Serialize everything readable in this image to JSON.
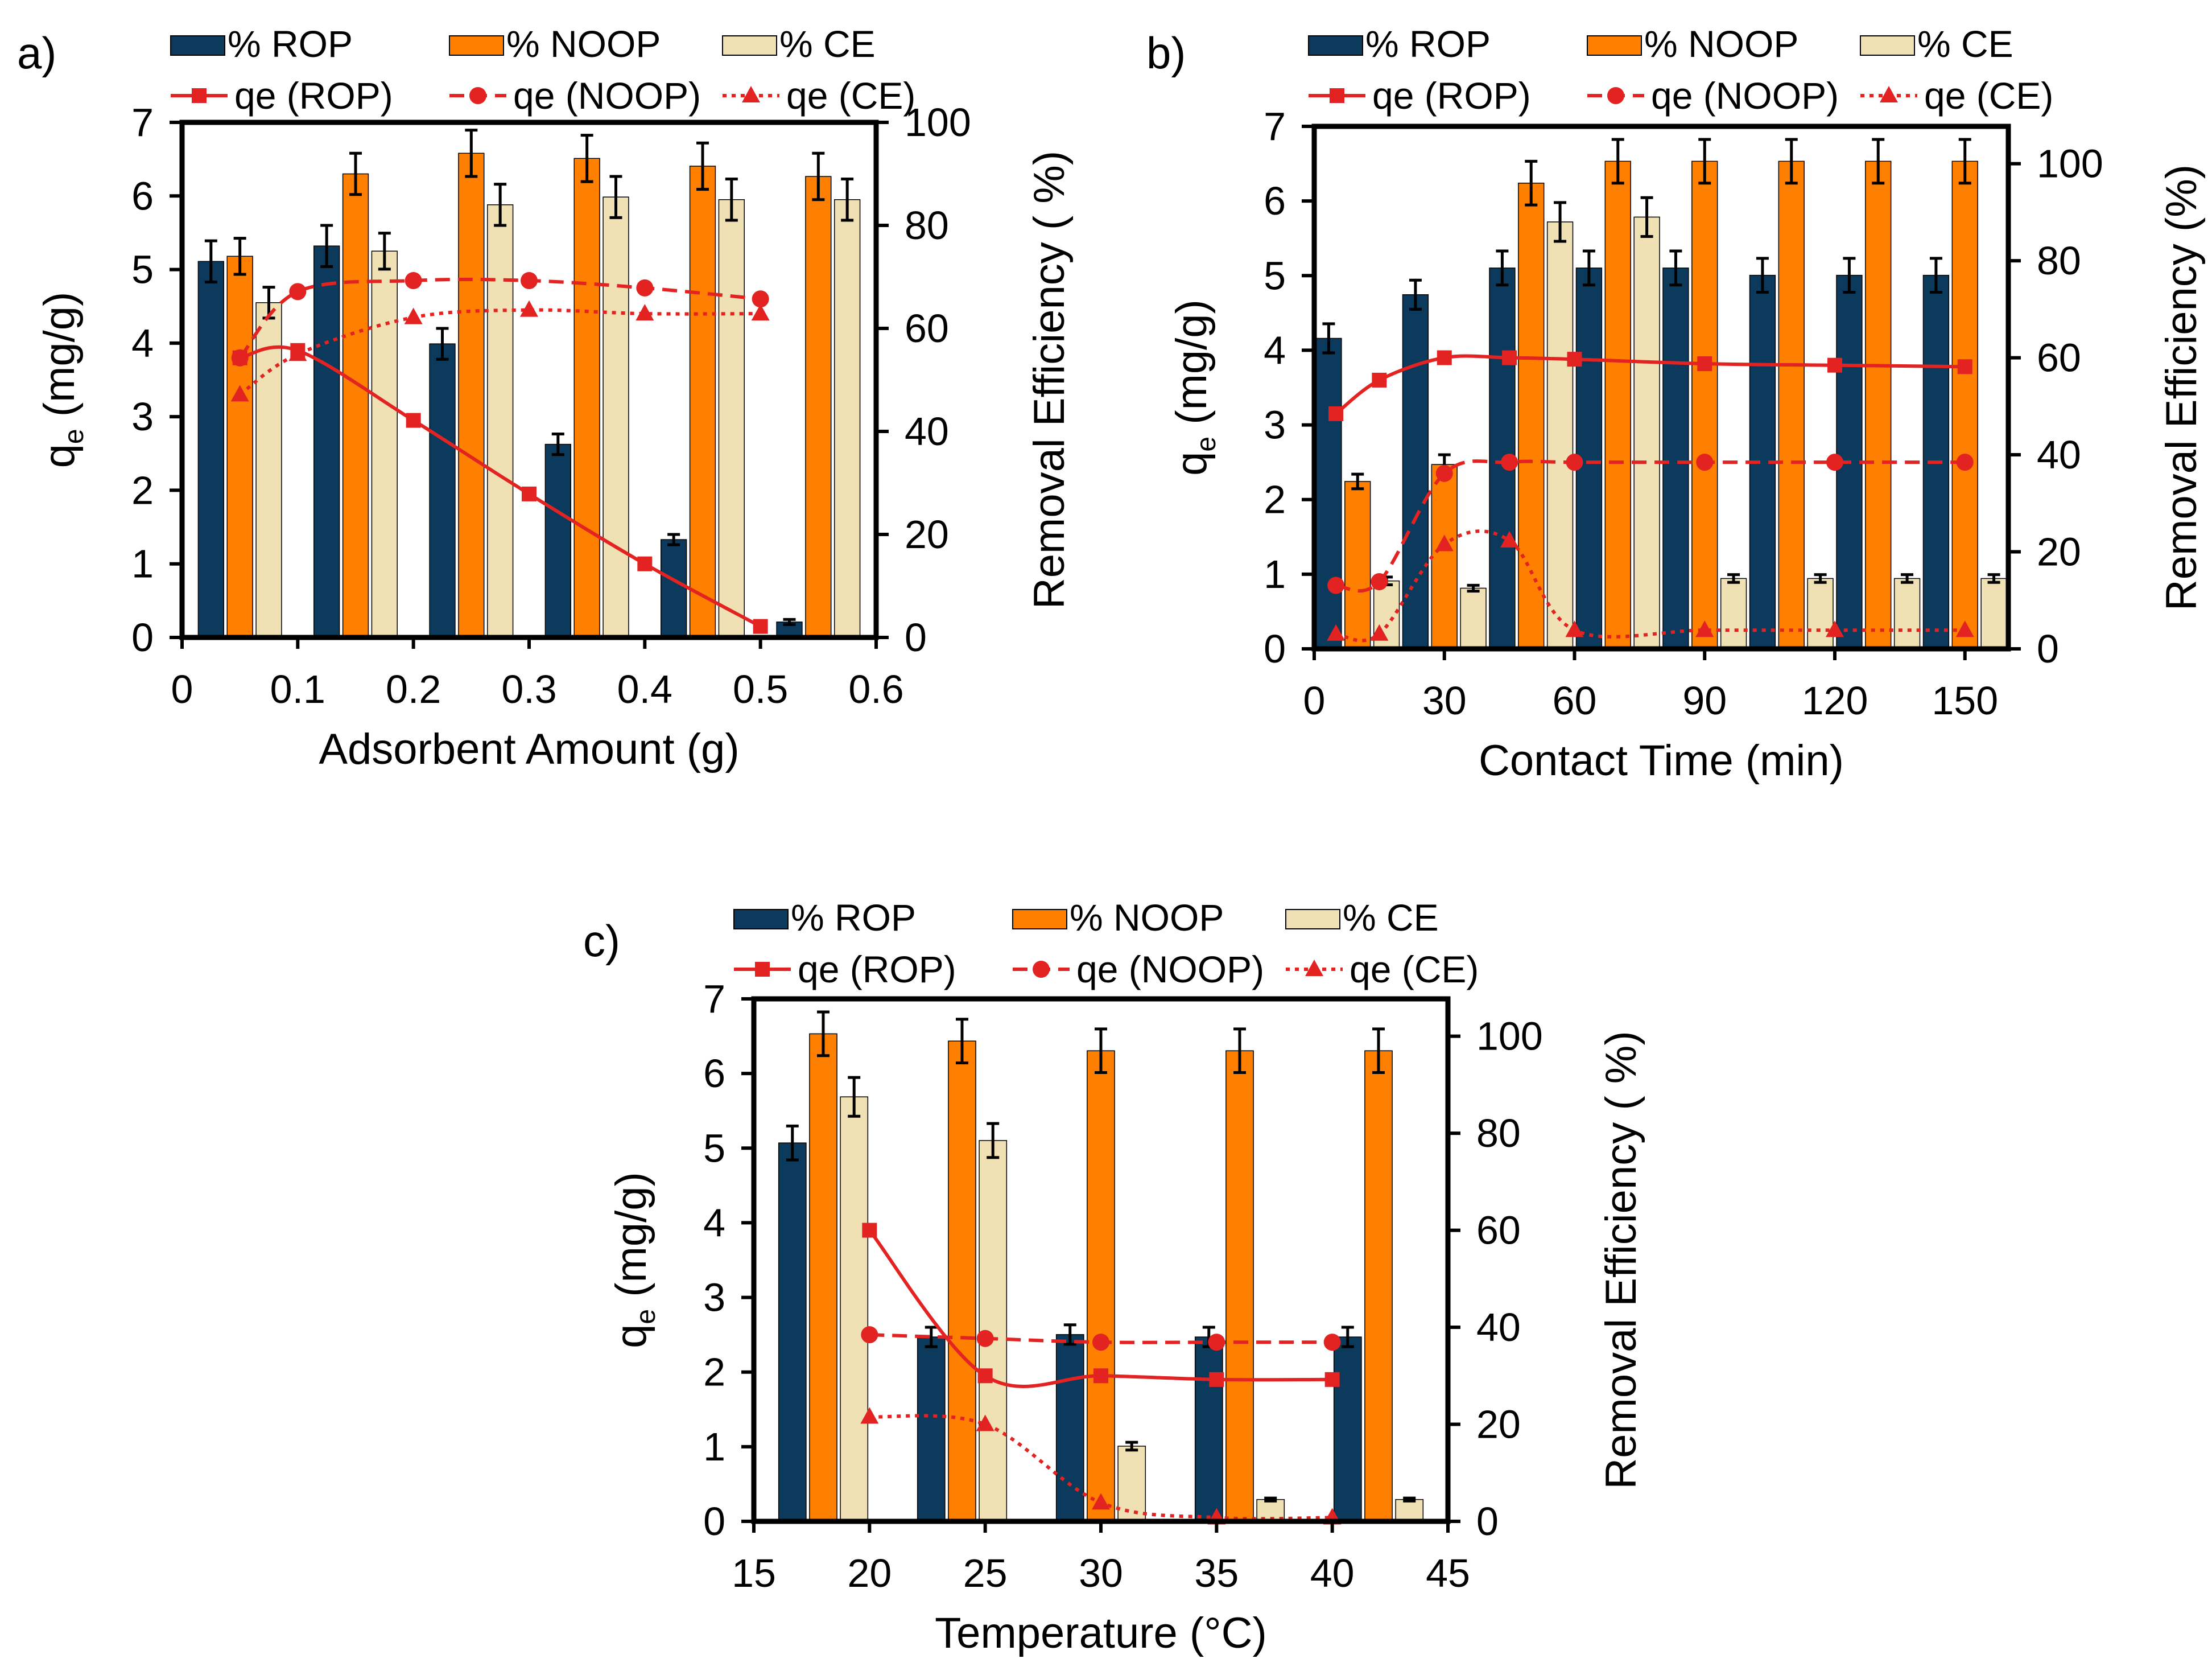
{
  "colors": {
    "rop_bar": "#0c3a5c",
    "noop_bar": "#ff8000",
    "ce_bar": "#efe1b3",
    "line": "#e32222"
  },
  "chart_data": [
    {
      "panel_label": "a)",
      "type": "bar",
      "xlabel": "Adsorbent Amount (g)",
      "ylabel_main": "q",
      "ylabel_sub": "e",
      "ylabel_unit": " (mg/g)",
      "y2label": "Removal Efficiency ( %)",
      "xlim": [
        0,
        0.6
      ],
      "xticks": [
        0,
        0.1,
        0.2,
        0.3,
        0.4,
        0.5,
        0.6
      ],
      "xtick_labels": [
        "0",
        "0.1",
        "0.2",
        "0.3",
        "0.4",
        "0.5",
        "0.6"
      ],
      "ylim": [
        0,
        7
      ],
      "yticks": [
        0,
        1,
        2,
        3,
        4,
        5,
        6,
        7
      ],
      "y2lim": [
        0,
        100
      ],
      "y2ticks": [
        0,
        20,
        40,
        60,
        80,
        100
      ],
      "bar_group_width": 0.075,
      "legend": {
        "bar_labels": [
          "% ROP",
          "% NOOP",
          "% CE"
        ],
        "line_labels": [
          "qe (ROP)",
          "qe (NOOP)",
          "qe (CE)"
        ]
      },
      "bar_series": [
        {
          "name": "% ROP",
          "x": [
            0.05,
            0.15,
            0.25,
            0.35,
            0.45,
            0.55
          ],
          "values": [
            73,
            76,
            57,
            37.5,
            19,
            3
          ],
          "errors": [
            4,
            4,
            3,
            2,
            1,
            0.5
          ]
        },
        {
          "name": "% NOOP",
          "x": [
            0.05,
            0.15,
            0.25,
            0.35,
            0.45,
            0.55
          ],
          "values": [
            74,
            90,
            94,
            93,
            91.5,
            89.5
          ],
          "errors": [
            3.5,
            4,
            4.5,
            4.5,
            4.5,
            4.5
          ]
        },
        {
          "name": "% CE",
          "x": [
            0.05,
            0.15,
            0.25,
            0.35,
            0.45,
            0.55
          ],
          "values": [
            65,
            75,
            84,
            85.5,
            85,
            85
          ],
          "errors": [
            3,
            3.5,
            4,
            4,
            4,
            4
          ]
        }
      ],
      "line_series": [
        {
          "name": "qe (ROP)",
          "style": "solid",
          "marker": "square",
          "x": [
            0.05,
            0.1,
            0.2,
            0.3,
            0.4,
            0.5
          ],
          "y": [
            3.8,
            3.9,
            2.95,
            1.95,
            1.0,
            0.15
          ]
        },
        {
          "name": "qe (NOOP)",
          "style": "dashed",
          "marker": "circle",
          "x": [
            0.05,
            0.1,
            0.2,
            0.3,
            0.4,
            0.5
          ],
          "y": [
            3.8,
            4.7,
            4.85,
            4.85,
            4.75,
            4.6
          ]
        },
        {
          "name": "qe (CE)",
          "style": "dotted",
          "marker": "triangle",
          "x": [
            0.05,
            0.1,
            0.2,
            0.3,
            0.4,
            0.5
          ],
          "y": [
            3.3,
            3.85,
            4.35,
            4.45,
            4.4,
            4.4
          ]
        }
      ]
    },
    {
      "panel_label": "b)",
      "type": "bar",
      "xlabel": "Contact Time (min)",
      "ylabel_main": "q",
      "ylabel_sub": "e",
      "ylabel_unit": " (mg/g)",
      "y2label": "Removal Efficiency (%)",
      "xlim": [
        0,
        160
      ],
      "xticks": [
        0,
        30,
        60,
        90,
        120,
        150
      ],
      "xtick_labels": [
        "0",
        "30",
        "60",
        "90",
        "120",
        "150"
      ],
      "ylim": [
        0,
        7
      ],
      "yticks": [
        0,
        1,
        2,
        3,
        4,
        5,
        6,
        7
      ],
      "y2lim": [
        0,
        107.7
      ],
      "y2ticks": [
        0,
        20,
        40,
        60,
        80,
        100
      ],
      "bar_group_width": 20,
      "legend": {
        "bar_labels": [
          "% ROP",
          "% NOOP",
          "% CE"
        ],
        "line_labels": [
          "qe (ROP)",
          "qe (NOOP)",
          "qe (CE)"
        ]
      },
      "bar_series": [
        {
          "name": "% ROP",
          "x": [
            10,
            30,
            50,
            70,
            90,
            110,
            130,
            150
          ],
          "values": [
            64,
            73,
            78.5,
            78.5,
            78.5,
            77,
            77,
            77
          ],
          "errors": [
            3,
            3,
            3.5,
            3.5,
            3.5,
            3.5,
            3.5,
            3.5
          ]
        },
        {
          "name": "% NOOP",
          "x": [
            10,
            30,
            50,
            70,
            90,
            110,
            130,
            150
          ],
          "values": [
            34.5,
            38,
            96,
            100.5,
            100.5,
            100.5,
            100.5,
            100.5
          ],
          "errors": [
            1.5,
            2,
            4.5,
            4.5,
            4.5,
            4.5,
            4.5,
            4.5
          ]
        },
        {
          "name": "% CE",
          "x": [
            10,
            30,
            50,
            70,
            90,
            110,
            130,
            150
          ],
          "values": [
            14,
            12.5,
            88,
            89,
            14.5,
            14.5,
            14.5,
            14.5
          ],
          "errors": [
            0.8,
            0.6,
            4,
            4,
            0.8,
            0.8,
            0.8,
            0.8
          ]
        }
      ],
      "line_series": [
        {
          "name": "qe (ROP)",
          "style": "solid",
          "marker": "square",
          "x": [
            5,
            15,
            30,
            45,
            60,
            90,
            120,
            150
          ],
          "y": [
            3.15,
            3.6,
            3.9,
            3.9,
            3.88,
            3.82,
            3.8,
            3.78
          ]
        },
        {
          "name": "qe (NOOP)",
          "style": "dashed",
          "marker": "circle",
          "x": [
            5,
            15,
            30,
            45,
            60,
            90,
            120,
            150
          ],
          "y": [
            0.85,
            0.9,
            2.35,
            2.5,
            2.5,
            2.5,
            2.5,
            2.5
          ]
        },
        {
          "name": "qe (CE)",
          "style": "dotted",
          "marker": "triangle",
          "x": [
            5,
            15,
            30,
            45,
            60,
            90,
            120,
            150
          ],
          "y": [
            0.2,
            0.2,
            1.4,
            1.45,
            0.25,
            0.25,
            0.25,
            0.25
          ]
        }
      ]
    },
    {
      "panel_label": "c)",
      "type": "bar",
      "xlabel": "Temperature (°C)",
      "ylabel_main": "q",
      "ylabel_sub": "e",
      "ylabel_unit": " (mg/g)",
      "y2label": "Removal Efficiency ( %)",
      "xlim": [
        15,
        45
      ],
      "xticks": [
        15,
        20,
        25,
        30,
        35,
        40,
        45
      ],
      "xtick_labels": [
        "15",
        "20",
        "25",
        "30",
        "35",
        "40",
        "45"
      ],
      "ylim": [
        0,
        7
      ],
      "yticks": [
        0,
        1,
        2,
        3,
        4,
        5,
        6,
        7
      ],
      "y2lim": [
        0,
        107.7
      ],
      "y2ticks": [
        0,
        20,
        40,
        60,
        80,
        100
      ],
      "bar_group_width": 4,
      "legend": {
        "bar_labels": [
          "% ROP",
          "% NOOP",
          "% CE"
        ],
        "line_labels": [
          "qe (ROP)",
          "qe (NOOP)",
          "qe (CE)"
        ]
      },
      "bar_series": [
        {
          "name": "% ROP",
          "x": [
            18,
            24,
            30,
            36,
            42
          ],
          "values": [
            78,
            38,
            38.5,
            38,
            38
          ],
          "errors": [
            3.5,
            2,
            2,
            2,
            2
          ]
        },
        {
          "name": "% NOOP",
          "x": [
            18,
            24,
            30,
            36,
            42
          ],
          "values": [
            100.5,
            99,
            97,
            97,
            97
          ],
          "errors": [
            4.5,
            4.5,
            4.5,
            4.5,
            4.5
          ]
        },
        {
          "name": "% CE",
          "x": [
            18,
            24,
            30,
            36,
            42
          ],
          "values": [
            87.5,
            78.5,
            15.5,
            4.5,
            4.5
          ],
          "errors": [
            4,
            3.5,
            0.8,
            0.3,
            0.3
          ]
        }
      ],
      "line_series": [
        {
          "name": "qe (ROP)",
          "style": "solid",
          "marker": "square",
          "x": [
            20,
            25,
            30,
            35,
            40
          ],
          "y": [
            3.9,
            1.95,
            1.95,
            1.9,
            1.9
          ]
        },
        {
          "name": "qe (NOOP)",
          "style": "dashed",
          "marker": "circle",
          "x": [
            20,
            25,
            30,
            35,
            40
          ],
          "y": [
            2.5,
            2.45,
            2.4,
            2.4,
            2.4
          ]
        },
        {
          "name": "qe (CE)",
          "style": "dotted",
          "marker": "triangle",
          "x": [
            20,
            25,
            30,
            35,
            40
          ],
          "y": [
            1.4,
            1.3,
            0.25,
            0.05,
            0.05
          ]
        }
      ]
    }
  ]
}
